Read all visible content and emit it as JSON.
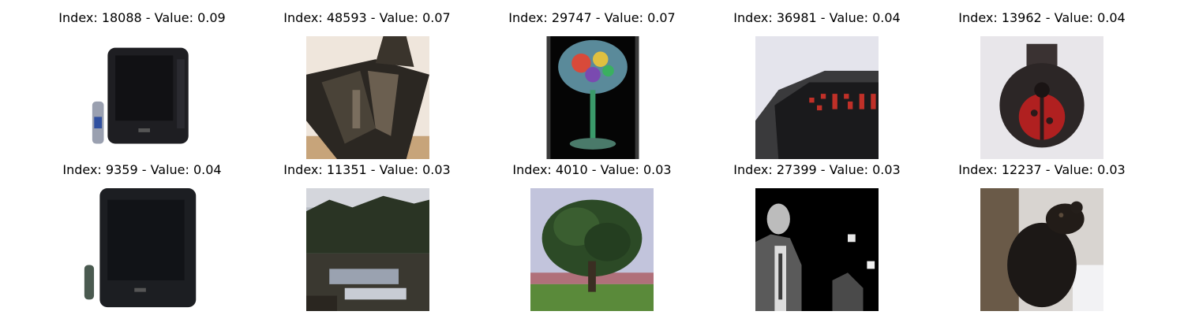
{
  "panels": [
    {
      "title": "Index: 18088 - Value: 0.09",
      "image": "crt-television-with-remote"
    },
    {
      "title": "Index: 48593 - Value: 0.07",
      "image": "dark-boxy-object"
    },
    {
      "title": "Index: 29747 - Value: 0.07",
      "image": "glass-with-colorful-decoration"
    },
    {
      "title": "Index: 36981 - Value: 0.04",
      "image": "digital-alarm-clock"
    },
    {
      "title": "Index: 13962 - Value: 0.04",
      "image": "ladybug-jar"
    },
    {
      "title": "Index: 9359 - Value: 0.04",
      "image": "crt-television-with-remote"
    },
    {
      "title": "Index: 11351 - Value: 0.03",
      "image": "lake-with-trees"
    },
    {
      "title": "Index: 4010 - Value: 0.03",
      "image": "tree-in-field"
    },
    {
      "title": "Index: 27399 - Value: 0.03",
      "image": "man-in-suit-black-and-white"
    },
    {
      "title": "Index: 12237 - Value: 0.03",
      "image": "black-bear-cub-on-tree"
    }
  ]
}
